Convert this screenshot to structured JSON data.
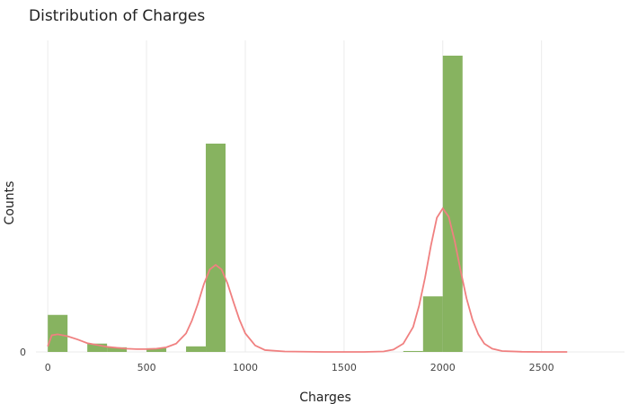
{
  "chart_data": {
    "type": "bar",
    "title": "Distribution of Charges",
    "xlabel": "Charges",
    "ylabel": "Counts",
    "xlim": [
      -60,
      2920
    ],
    "ylim": [
      0,
      32
    ],
    "x_ticks": [
      0,
      500,
      1000,
      1500,
      2000,
      2500
    ],
    "y_ticks": [
      0
    ],
    "grid": true,
    "bar_color": "#7aab4f",
    "density_color": "#f08080",
    "bins": [
      {
        "x0": 0,
        "x1": 100,
        "count": 4
      },
      {
        "x0": 200,
        "x1": 300,
        "count": 0.9
      },
      {
        "x0": 300,
        "x1": 400,
        "count": 0.5
      },
      {
        "x0": 500,
        "x1": 600,
        "count": 0.4
      },
      {
        "x0": 700,
        "x1": 800,
        "count": 0.6
      },
      {
        "x0": 800,
        "x1": 900,
        "count": 22.5
      },
      {
        "x0": 1800,
        "x1": 1900,
        "count": 0.1
      },
      {
        "x0": 1900,
        "x1": 2000,
        "count": 6
      },
      {
        "x0": 2000,
        "x1": 2100,
        "count": 32
      }
    ],
    "density": {
      "x": [
        0,
        20,
        50,
        100,
        150,
        200,
        250,
        300,
        350,
        400,
        450,
        500,
        550,
        600,
        650,
        700,
        730,
        760,
        790,
        820,
        850,
        880,
        910,
        940,
        970,
        1000,
        1050,
        1100,
        1200,
        1400,
        1600,
        1700,
        1750,
        1800,
        1850,
        1880,
        1910,
        1940,
        1970,
        2000,
        2030,
        2060,
        2090,
        2120,
        2150,
        2180,
        2210,
        2250,
        2300,
        2400,
        2500,
        2630
      ],
      "y": [
        0.6,
        1.8,
        1.9,
        1.7,
        1.35,
        0.95,
        0.75,
        0.55,
        0.45,
        0.35,
        0.3,
        0.3,
        0.35,
        0.5,
        0.9,
        2.0,
        3.4,
        5.2,
        7.3,
        8.9,
        9.4,
        8.9,
        7.4,
        5.4,
        3.5,
        2.0,
        0.7,
        0.2,
        0.05,
        0,
        0,
        0.05,
        0.25,
        0.9,
        2.7,
        5.0,
        8.0,
        11.5,
        14.5,
        15.5,
        14.6,
        12.0,
        8.8,
        5.8,
        3.5,
        1.9,
        0.9,
        0.35,
        0.1,
        0.02,
        0,
        0
      ]
    }
  }
}
